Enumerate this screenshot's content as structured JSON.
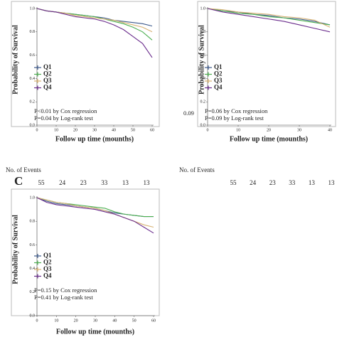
{
  "chart_data": [
    {
      "type": "line",
      "xlabel": "Follow up time (mounths)",
      "ylabel": "Probability of Survival",
      "x": [
        0,
        5,
        10,
        15,
        20,
        25,
        30,
        35,
        40,
        45,
        50,
        55,
        60
      ],
      "xlim": [
        0,
        60
      ],
      "xticks": [
        0,
        10,
        20,
        30,
        40,
        50,
        60
      ],
      "ylim": [
        0,
        1
      ],
      "yticks": [
        {
          "value": 1,
          "label": "1.0"
        },
        0.8,
        0.6,
        0.4,
        0.2,
        {
          "value": 0,
          "label": "0.0"
        }
      ],
      "series": [
        {
          "name": "Q1",
          "color": "#3d5a8c",
          "values": [
            1,
            0.98,
            0.97,
            0.96,
            0.95,
            0.94,
            0.93,
            0.92,
            0.9,
            0.89,
            0.88,
            0.87,
            0.85
          ]
        },
        {
          "name": "Q2",
          "color": "#4caf50",
          "values": [
            1,
            0.98,
            0.97,
            0.96,
            0.95,
            0.94,
            0.93,
            0.91,
            0.89,
            0.87,
            0.84,
            0.8,
            0.73
          ]
        },
        {
          "name": "Q3",
          "color": "#d8b273",
          "values": [
            1,
            0.98,
            0.97,
            0.96,
            0.94,
            0.93,
            0.92,
            0.91,
            0.9,
            0.88,
            0.86,
            0.84,
            0.8
          ]
        },
        {
          "name": "Q4",
          "color": "#6a2c8c",
          "values": [
            1,
            0.98,
            0.97,
            0.95,
            0.93,
            0.92,
            0.91,
            0.89,
            0.86,
            0.82,
            0.76,
            0.7,
            0.58
          ]
        }
      ],
      "annotations": [
        "P<0.01 by Cox regression",
        "P=0.04 by Log-rank test"
      ],
      "events_label": "No. of Events",
      "events": [
        55,
        24,
        23,
        33,
        13,
        13
      ]
    },
    {
      "type": "line",
      "xlabel": "Follow up time (mounths)",
      "ylabel": "Probability of Survival",
      "x": [
        0,
        5,
        10,
        15,
        20,
        25,
        30,
        35,
        40
      ],
      "xlim": [
        0,
        40
      ],
      "xticks": [
        0,
        10,
        20,
        30,
        40
      ],
      "ylim": [
        0,
        1
      ],
      "yticks": [
        {
          "value": 1,
          "label": "1.0"
        },
        0.8,
        0.6,
        0.4,
        0.2,
        {
          "value": 0,
          "label": "0.0"
        }
      ],
      "series": [
        {
          "name": "Q1",
          "color": "#3d5a8c",
          "values": [
            1,
            0.98,
            0.97,
            0.95,
            0.94,
            0.92,
            0.91,
            0.89,
            0.86
          ]
        },
        {
          "name": "Q2",
          "color": "#4caf50",
          "values": [
            1,
            0.98,
            0.96,
            0.95,
            0.93,
            0.92,
            0.9,
            0.88,
            0.86
          ]
        },
        {
          "name": "Q3",
          "color": "#d8b273",
          "values": [
            1,
            0.99,
            0.97,
            0.96,
            0.95,
            0.93,
            0.92,
            0.9,
            0.84
          ]
        },
        {
          "name": "Q4",
          "color": "#6a2c8c",
          "values": [
            1,
            0.97,
            0.95,
            0.93,
            0.91,
            0.89,
            0.86,
            0.83,
            0.8
          ]
        }
      ],
      "annotations": [
        "P=0.06 by Cox regression",
        "P=0.09 by Log-rank test"
      ],
      "side_text": "0.09",
      "events_label": "No. of Events",
      "events": [
        55,
        24,
        23,
        33,
        13,
        13
      ]
    },
    {
      "type": "line",
      "panel_label": "C",
      "xlabel": "Follow up time (mounths)",
      "ylabel": "Probability of Survival",
      "x": [
        0,
        5,
        10,
        15,
        20,
        25,
        30,
        35,
        40,
        45,
        50,
        55,
        60
      ],
      "xlim": [
        0,
        60
      ],
      "xticks": [
        0,
        10,
        20,
        30,
        40,
        50,
        60
      ],
      "ylim": [
        0,
        1
      ],
      "yticks": [
        {
          "value": 1,
          "label": "1.0"
        },
        0.8,
        0.6,
        0.4,
        0.2,
        {
          "value": 0,
          "label": "0.0"
        }
      ],
      "series": [
        {
          "name": "Q1",
          "color": "#3d5a8c",
          "values": [
            1,
            0.97,
            0.95,
            0.94,
            0.93,
            0.92,
            0.91,
            0.89,
            0.87,
            0.86,
            0.85,
            0.84,
            0.84
          ]
        },
        {
          "name": "Q2",
          "color": "#4caf50",
          "values": [
            1,
            0.98,
            0.96,
            0.95,
            0.94,
            0.93,
            0.92,
            0.91,
            0.88,
            0.86,
            0.85,
            0.84,
            0.84
          ]
        },
        {
          "name": "Q3",
          "color": "#d8b273",
          "values": [
            1,
            0.98,
            0.96,
            0.95,
            0.93,
            0.92,
            0.91,
            0.89,
            0.86,
            0.83,
            0.8,
            0.77,
            0.75
          ]
        },
        {
          "name": "Q4",
          "color": "#6a2c8c",
          "values": [
            1,
            0.96,
            0.94,
            0.93,
            0.92,
            0.91,
            0.9,
            0.88,
            0.86,
            0.83,
            0.8,
            0.75,
            0.7
          ]
        }
      ],
      "annotations": [
        "P=0.15 by Cox regression",
        "P=0.41 by Log-rank test"
      ]
    }
  ]
}
